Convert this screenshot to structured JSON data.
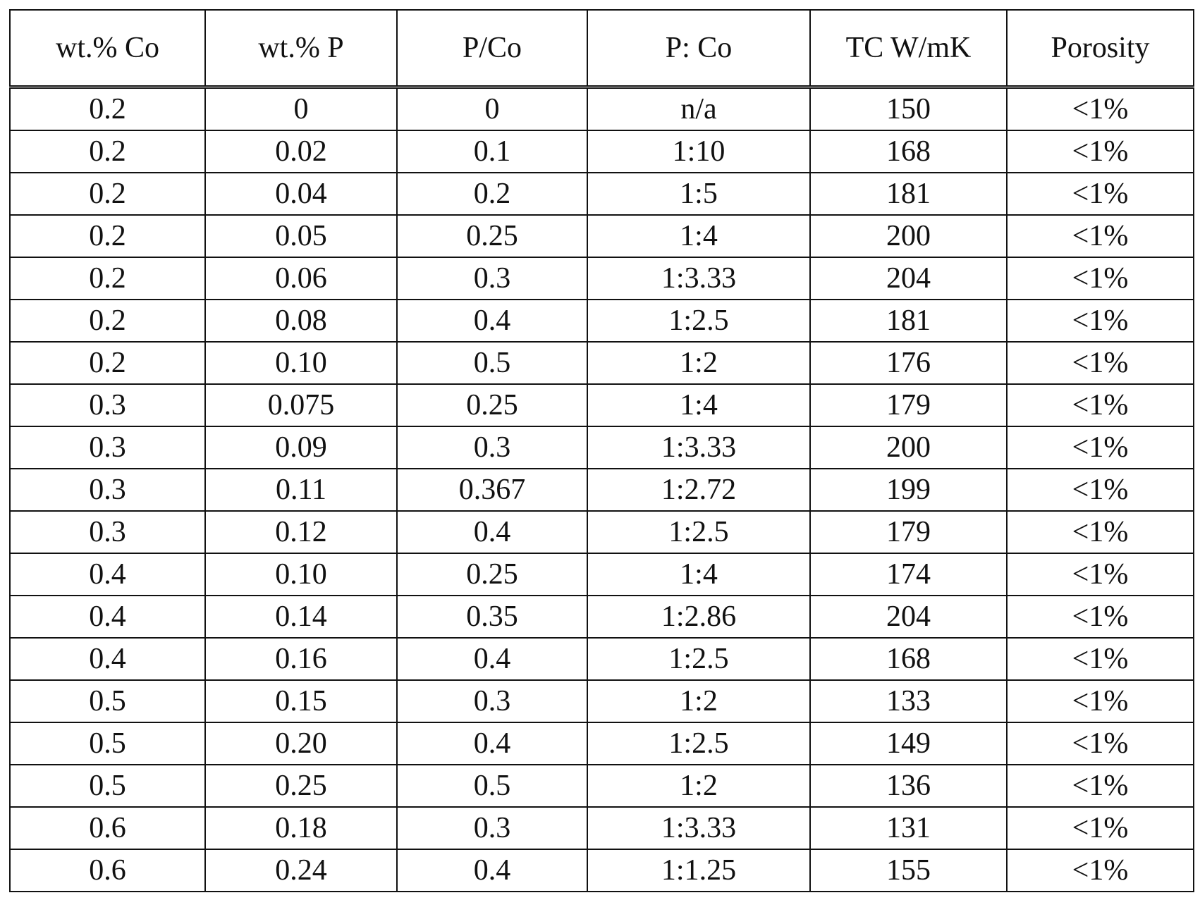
{
  "table": {
    "headers": [
      "wt.% Co",
      "wt.% P",
      "P/Co",
      "P: Co",
      "TC W/mK",
      "Porosity"
    ],
    "rows": [
      [
        "0.2",
        "0",
        "0",
        "n/a",
        "150",
        "<1%"
      ],
      [
        "0.2",
        "0.02",
        "0.1",
        "1:10",
        "168",
        "<1%"
      ],
      [
        "0.2",
        "0.04",
        "0.2",
        "1:5",
        "181",
        "<1%"
      ],
      [
        "0.2",
        "0.05",
        "0.25",
        "1:4",
        "200",
        "<1%"
      ],
      [
        "0.2",
        "0.06",
        "0.3",
        "1:3.33",
        "204",
        "<1%"
      ],
      [
        "0.2",
        "0.08",
        "0.4",
        "1:2.5",
        "181",
        "<1%"
      ],
      [
        "0.2",
        "0.10",
        "0.5",
        "1:2",
        "176",
        "<1%"
      ],
      [
        "0.3",
        "0.075",
        "0.25",
        "1:4",
        "179",
        "<1%"
      ],
      [
        "0.3",
        "0.09",
        "0.3",
        "1:3.33",
        "200",
        "<1%"
      ],
      [
        "0.3",
        "0.11",
        "0.367",
        "1:2.72",
        "199",
        "<1%"
      ],
      [
        "0.3",
        "0.12",
        "0.4",
        "1:2.5",
        "179",
        "<1%"
      ],
      [
        "0.4",
        "0.10",
        "0.25",
        "1:4",
        "174",
        "<1%"
      ],
      [
        "0.4",
        "0.14",
        "0.35",
        "1:2.86",
        "204",
        "<1%"
      ],
      [
        "0.4",
        "0.16",
        "0.4",
        "1:2.5",
        "168",
        "<1%"
      ],
      [
        "0.5",
        "0.15",
        "0.3",
        "1:2",
        "133",
        "<1%"
      ],
      [
        "0.5",
        "0.20",
        "0.4",
        "1:2.5",
        "149",
        "<1%"
      ],
      [
        "0.5",
        "0.25",
        "0.5",
        "1:2",
        "136",
        "<1%"
      ],
      [
        "0.6",
        "0.18",
        "0.3",
        "1:3.33",
        "131",
        "<1%"
      ],
      [
        "0.6",
        "0.24",
        "0.4",
        "1:1.25",
        "155",
        "<1%"
      ]
    ]
  }
}
